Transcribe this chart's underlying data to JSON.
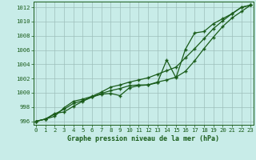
{
  "title": "Graphe pression niveau de la mer (hPa)",
  "background_color": "#c8ece8",
  "grid_color": "#9dbfbb",
  "line_color": "#1a5c1a",
  "xlim": [
    -0.3,
    23.3
  ],
  "ylim": [
    995.5,
    1012.8
  ],
  "yticks": [
    996,
    998,
    1000,
    1002,
    1004,
    1006,
    1008,
    1010,
    1012
  ],
  "xticks": [
    0,
    1,
    2,
    3,
    4,
    5,
    6,
    7,
    8,
    9,
    10,
    11,
    12,
    13,
    14,
    15,
    16,
    17,
    18,
    19,
    20,
    21,
    22,
    23
  ],
  "series1": [
    996.0,
    996.3,
    997.1,
    997.3,
    998.1,
    998.8,
    999.4,
    999.8,
    999.9,
    999.6,
    1000.7,
    1001.0,
    1001.1,
    1001.4,
    1004.6,
    1002.1,
    1006.1,
    1008.4,
    1008.6,
    1009.7,
    1010.4,
    1011.1,
    1012.0,
    1012.3
  ],
  "series2": [
    996.0,
    996.3,
    997.0,
    997.7,
    998.5,
    998.9,
    999.4,
    999.9,
    1000.3,
    1000.6,
    1001.0,
    1001.1,
    1001.1,
    1001.5,
    1001.8,
    1002.2,
    1003.0,
    1004.5,
    1006.2,
    1007.8,
    1009.3,
    1010.5,
    1011.4,
    1012.3
  ],
  "series3": [
    996.0,
    996.3,
    996.7,
    997.9,
    998.8,
    999.1,
    999.5,
    1000.1,
    1000.8,
    1001.1,
    1001.5,
    1001.8,
    1002.1,
    1002.6,
    1003.1,
    1003.6,
    1004.9,
    1006.2,
    1007.6,
    1009.0,
    1010.1,
    1011.1,
    1012.0,
    1012.3
  ]
}
